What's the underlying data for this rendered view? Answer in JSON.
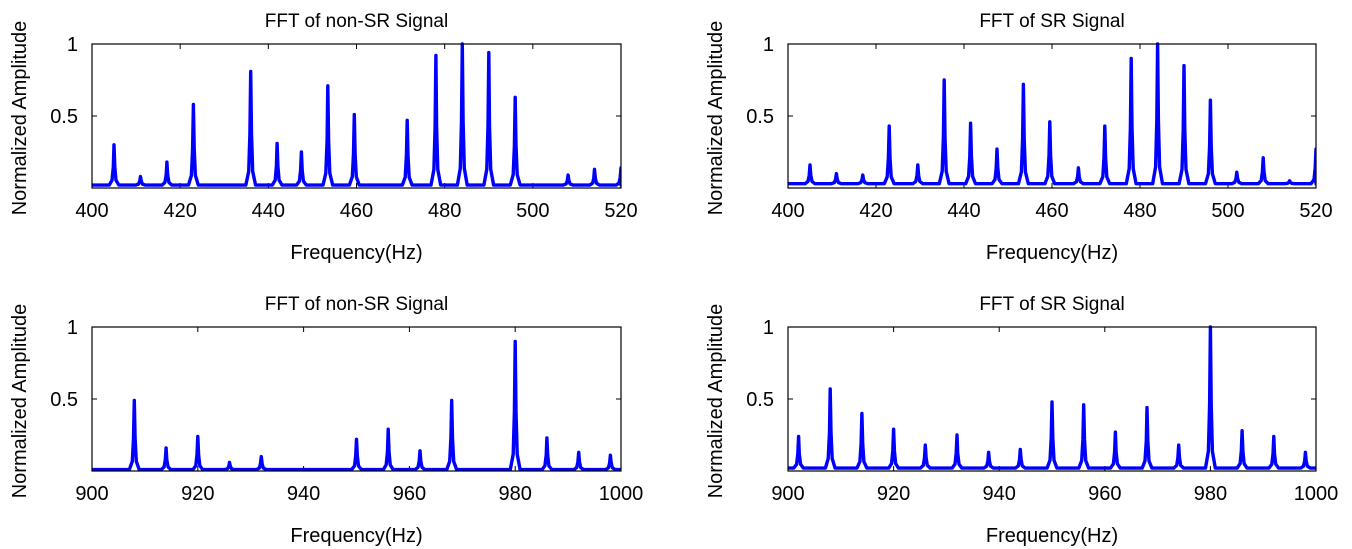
{
  "colors": {
    "trace": "#0000ff",
    "axes": "#000000",
    "background": "#ffffff"
  },
  "chart_data": [
    {
      "type": "line",
      "title": "FFT of non-SR Signal",
      "xlabel": "Frequency(Hz)",
      "ylabel": "Normalized Amplitude",
      "xlim": [
        400,
        520
      ],
      "ylim": [
        0,
        1
      ],
      "xticks": [
        "400",
        "420",
        "440",
        "460",
        "480",
        "500",
        "520"
      ],
      "yticks": [
        "0.5",
        "1"
      ],
      "grid": false,
      "baseline": 0.02,
      "peaks": [
        {
          "x": 405,
          "y": 0.3
        },
        {
          "x": 411,
          "y": 0.08
        },
        {
          "x": 417,
          "y": 0.18
        },
        {
          "x": 423,
          "y": 0.58
        },
        {
          "x": 436,
          "y": 0.81
        },
        {
          "x": 442,
          "y": 0.31
        },
        {
          "x": 447.5,
          "y": 0.25
        },
        {
          "x": 453.5,
          "y": 0.71
        },
        {
          "x": 459.5,
          "y": 0.51
        },
        {
          "x": 471.5,
          "y": 0.47
        },
        {
          "x": 478,
          "y": 0.92
        },
        {
          "x": 484,
          "y": 1.0
        },
        {
          "x": 490,
          "y": 0.94
        },
        {
          "x": 496,
          "y": 0.63
        },
        {
          "x": 508,
          "y": 0.09
        },
        {
          "x": 514,
          "y": 0.13
        },
        {
          "x": 520,
          "y": 0.14
        }
      ]
    },
    {
      "type": "line",
      "title": "FFT of SR Signal",
      "xlabel": "Frequency(Hz)",
      "ylabel": "Normalized Amplitude",
      "xlim": [
        400,
        520
      ],
      "ylim": [
        0,
        1
      ],
      "xticks": [
        "400",
        "420",
        "440",
        "460",
        "480",
        "500",
        "520"
      ],
      "yticks": [
        "0.5",
        "1"
      ],
      "grid": false,
      "baseline": 0.03,
      "peaks": [
        {
          "x": 405,
          "y": 0.16
        },
        {
          "x": 411,
          "y": 0.1
        },
        {
          "x": 417,
          "y": 0.09
        },
        {
          "x": 423,
          "y": 0.43
        },
        {
          "x": 429.5,
          "y": 0.16
        },
        {
          "x": 435.5,
          "y": 0.75
        },
        {
          "x": 441.5,
          "y": 0.45
        },
        {
          "x": 447.5,
          "y": 0.27
        },
        {
          "x": 453.5,
          "y": 0.72
        },
        {
          "x": 459.5,
          "y": 0.46
        },
        {
          "x": 466,
          "y": 0.14
        },
        {
          "x": 472,
          "y": 0.43
        },
        {
          "x": 478,
          "y": 0.9
        },
        {
          "x": 484,
          "y": 1.0
        },
        {
          "x": 490,
          "y": 0.85
        },
        {
          "x": 496,
          "y": 0.61
        },
        {
          "x": 502,
          "y": 0.11
        },
        {
          "x": 508,
          "y": 0.21
        },
        {
          "x": 514,
          "y": 0.05
        },
        {
          "x": 520,
          "y": 0.27
        }
      ]
    },
    {
      "type": "line",
      "title": "FFT of non-SR Signal",
      "xlabel": "Frequency(Hz)",
      "ylabel": "Normalized Amplitude",
      "xlim": [
        900,
        1000
      ],
      "ylim": [
        0,
        1
      ],
      "xticks": [
        "900",
        "920",
        "940",
        "960",
        "980",
        "1000"
      ],
      "yticks": [
        "0.5",
        "1"
      ],
      "grid": false,
      "baseline": 0.01,
      "peaks": [
        {
          "x": 908,
          "y": 0.49
        },
        {
          "x": 914,
          "y": 0.16
        },
        {
          "x": 920,
          "y": 0.24
        },
        {
          "x": 926,
          "y": 0.06
        },
        {
          "x": 932,
          "y": 0.1
        },
        {
          "x": 950,
          "y": 0.22
        },
        {
          "x": 956,
          "y": 0.29
        },
        {
          "x": 962,
          "y": 0.14
        },
        {
          "x": 968,
          "y": 0.49
        },
        {
          "x": 980,
          "y": 0.9
        },
        {
          "x": 986,
          "y": 0.23
        },
        {
          "x": 992,
          "y": 0.13
        },
        {
          "x": 998,
          "y": 0.11
        }
      ]
    },
    {
      "type": "line",
      "title": "FFT of SR Signal",
      "xlabel": "Frequency(Hz)",
      "ylabel": "Normalized Amplitude",
      "xlim": [
        900,
        1000
      ],
      "ylim": [
        0,
        1
      ],
      "xticks": [
        "900",
        "920",
        "940",
        "960",
        "980",
        "1000"
      ],
      "yticks": [
        "0.5",
        "1"
      ],
      "grid": false,
      "baseline": 0.02,
      "peaks": [
        {
          "x": 902,
          "y": 0.24
        },
        {
          "x": 908,
          "y": 0.57
        },
        {
          "x": 914,
          "y": 0.4
        },
        {
          "x": 920,
          "y": 0.29
        },
        {
          "x": 926,
          "y": 0.18
        },
        {
          "x": 932,
          "y": 0.25
        },
        {
          "x": 938,
          "y": 0.13
        },
        {
          "x": 944,
          "y": 0.15
        },
        {
          "x": 950,
          "y": 0.48
        },
        {
          "x": 956,
          "y": 0.46
        },
        {
          "x": 962,
          "y": 0.27
        },
        {
          "x": 968,
          "y": 0.44
        },
        {
          "x": 974,
          "y": 0.18
        },
        {
          "x": 980,
          "y": 1.0
        },
        {
          "x": 986,
          "y": 0.28
        },
        {
          "x": 992,
          "y": 0.24
        },
        {
          "x": 998,
          "y": 0.13
        }
      ]
    }
  ]
}
